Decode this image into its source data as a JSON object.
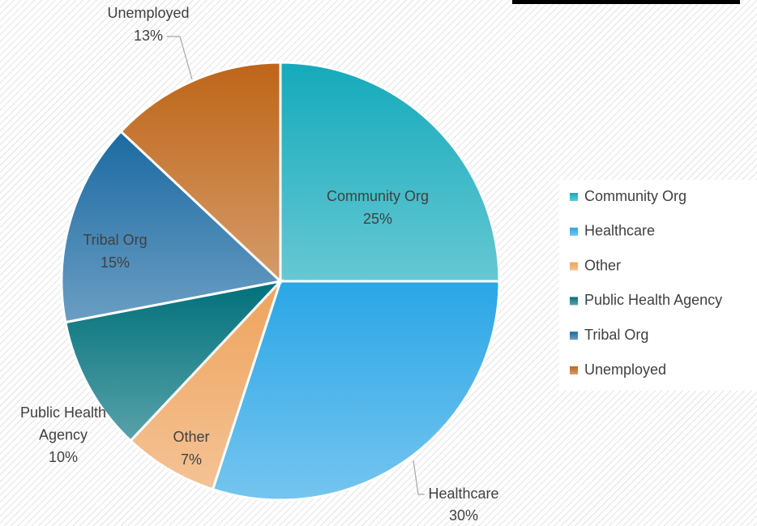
{
  "chart_data": {
    "type": "pie",
    "categories": [
      "Community Org",
      "Healthcare",
      "Other",
      "Public Health Agency",
      "Tribal Org",
      "Unemployed"
    ],
    "values": [
      25,
      30,
      7,
      10,
      15,
      13
    ],
    "value_labels": [
      "25%",
      "30%",
      "7%",
      "10%",
      "15%",
      "13%"
    ],
    "colors": [
      "#14aabb",
      "#2ba6e6",
      "#eea35c",
      "#00707a",
      "#1b6aa2",
      "#be6518"
    ],
    "legend": "right"
  }
}
